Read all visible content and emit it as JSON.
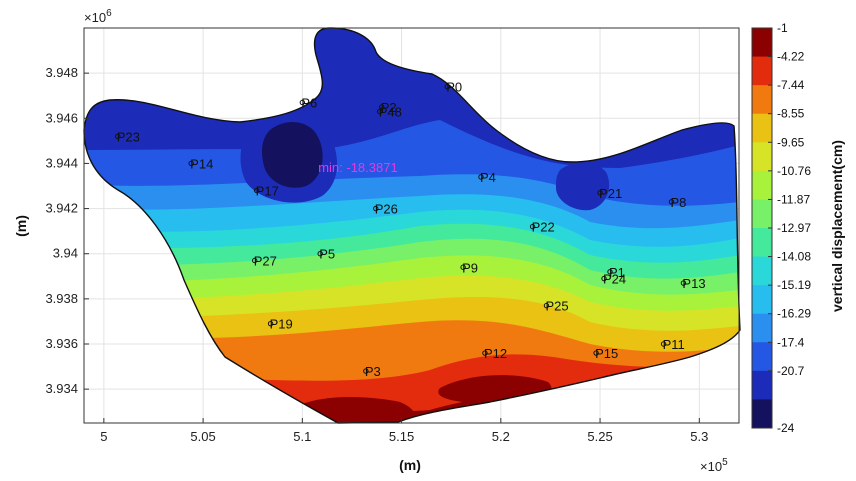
{
  "chart_data": {
    "type": "contour",
    "title": "",
    "xlabel": "(m)",
    "ylabel": "(m)",
    "x_exponent_label": "×10",
    "x_exponent_power": "5",
    "y_exponent_label": "×10",
    "y_exponent_power": "6",
    "xlim": [
      4.99,
      5.32
    ],
    "ylim": [
      3.9325,
      3.95
    ],
    "xticks": [
      5.0,
      5.05,
      5.1,
      5.15,
      5.2,
      5.25,
      5.3
    ],
    "xtick_labels": [
      "5",
      "5.05",
      "5.1",
      "5.15",
      "5.2",
      "5.25",
      "5.3"
    ],
    "yticks": [
      3.934,
      3.936,
      3.938,
      3.94,
      3.942,
      3.944,
      3.946,
      3.948
    ],
    "ytick_labels": [
      "3.934",
      "3.936",
      "3.938",
      "3.94",
      "3.942",
      "3.944",
      "3.946",
      "3.948"
    ],
    "grid": true,
    "colorbar": {
      "label": "vertical displacement(cm)",
      "levels": [
        -1,
        -4.22,
        -7.44,
        -8.55,
        -9.65,
        -10.76,
        -11.87,
        -12.97,
        -14.08,
        -15.19,
        -16.29,
        -17.4,
        -20.7,
        -24
      ],
      "level_labels": [
        "-1",
        "-4.22",
        "-7.44",
        "-8.55",
        "-9.65",
        "-10.76",
        "-11.87",
        "-12.97",
        "-14.08",
        "-15.19",
        "-16.29",
        "-17.4",
        "-20.7",
        "-24"
      ],
      "colors": [
        "#8b0000",
        "#e32b0e",
        "#f07a10",
        "#e9c213",
        "#d7e327",
        "#a9f23c",
        "#78f169",
        "#44e99b",
        "#2bd8d9",
        "#28bdef",
        "#2b8ff0",
        "#2457e3",
        "#1c2bb8",
        "#14125e"
      ]
    },
    "min_annotation": {
      "text": "min: -18.3871",
      "x": 5.108,
      "y": 3.9438
    },
    "points": [
      {
        "name": "P0",
        "x": 5.173,
        "y": 3.9474
      },
      {
        "name": "P2",
        "x": 5.14,
        "y": 3.9465
      },
      {
        "name": "P48",
        "x": 5.139,
        "y": 3.9463
      },
      {
        "name": "P6",
        "x": 5.1,
        "y": 3.9467
      },
      {
        "name": "P23",
        "x": 5.007,
        "y": 3.9452
      },
      {
        "name": "P14",
        "x": 5.044,
        "y": 3.944
      },
      {
        "name": "P17",
        "x": 5.077,
        "y": 3.9428
      },
      {
        "name": "P4",
        "x": 5.19,
        "y": 3.9434
      },
      {
        "name": "P21",
        "x": 5.25,
        "y": 3.9427
      },
      {
        "name": "P8",
        "x": 5.286,
        "y": 3.9423
      },
      {
        "name": "P26",
        "x": 5.137,
        "y": 3.942
      },
      {
        "name": "P22",
        "x": 5.216,
        "y": 3.9412
      },
      {
        "name": "P27",
        "x": 5.076,
        "y": 3.9397
      },
      {
        "name": "P5",
        "x": 5.109,
        "y": 3.94
      },
      {
        "name": "P9",
        "x": 5.181,
        "y": 3.9394
      },
      {
        "name": "P1",
        "x": 5.255,
        "y": 3.9392
      },
      {
        "name": "P24",
        "x": 5.252,
        "y": 3.9389
      },
      {
        "name": "P13",
        "x": 5.292,
        "y": 3.9387
      },
      {
        "name": "P25",
        "x": 5.223,
        "y": 3.9377
      },
      {
        "name": "P19",
        "x": 5.084,
        "y": 3.9369
      },
      {
        "name": "P12",
        "x": 5.192,
        "y": 3.9356
      },
      {
        "name": "P15",
        "x": 5.248,
        "y": 3.9356
      },
      {
        "name": "P11",
        "x": 5.282,
        "y": 3.936
      },
      {
        "name": "P3",
        "x": 5.132,
        "y": 3.9348
      }
    ]
  }
}
